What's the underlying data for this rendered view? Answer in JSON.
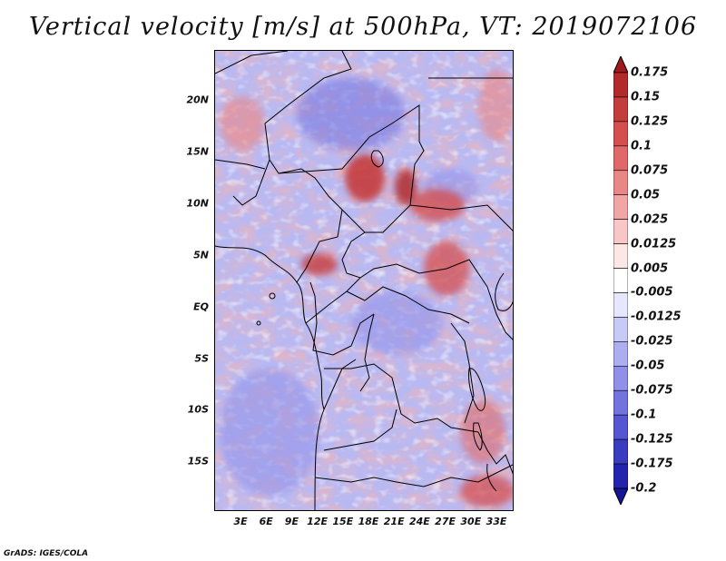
{
  "title": "Vertical velocity [m/s] at 500hPa, VT: 2019072106",
  "credit": "GrADS: IGES/COLA",
  "map": {
    "lat_labels": [
      "20N",
      "15N",
      "10N",
      "5N",
      "EQ",
      "5S",
      "10S",
      "15S"
    ],
    "lon_labels": [
      "3E",
      "6E",
      "9E",
      "12E",
      "15E",
      "18E",
      "21E",
      "24E",
      "27E",
      "30E",
      "33E"
    ]
  },
  "colorbar": {
    "labels": [
      "0.175",
      "0.15",
      "0.125",
      "0.1",
      "0.075",
      "0.05",
      "0.025",
      "0.0125",
      "0.005",
      "-0.005",
      "-0.0125",
      "-0.025",
      "-0.05",
      "-0.075",
      "-0.1",
      "-0.125",
      "-0.175",
      "-0.2"
    ],
    "colors": [
      "#a01a1a",
      "#b32a2a",
      "#c53c3c",
      "#d54f4f",
      "#e06868",
      "#e98686",
      "#f1a5a5",
      "#f8c6c6",
      "#fde6e6",
      "#ffffff",
      "#e6e6fc",
      "#c9c9f7",
      "#adadf1",
      "#9090ea",
      "#7373e0",
      "#5656d3",
      "#3b3bc2",
      "#2323ad",
      "#15159a"
    ]
  }
}
